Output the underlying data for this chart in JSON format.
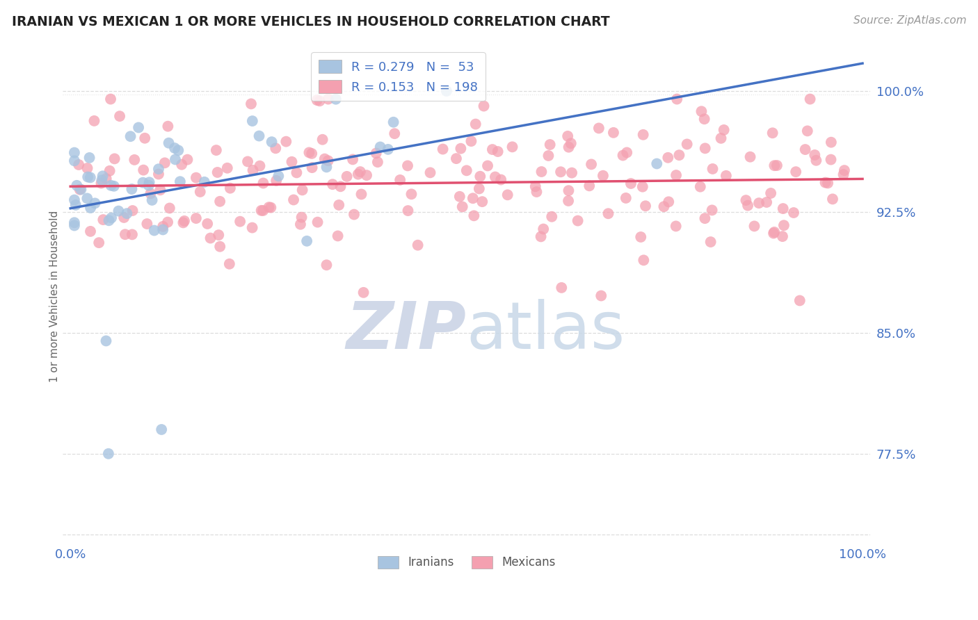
{
  "title": "IRANIAN VS MEXICAN 1 OR MORE VEHICLES IN HOUSEHOLD CORRELATION CHART",
  "source": "Source: ZipAtlas.com",
  "ylabel": "1 or more Vehicles in Household",
  "legend_entries": [
    {
      "label": "Iranians",
      "R": 0.279,
      "N": 53,
      "color": "#a8c4e0",
      "line_color": "#4472c4"
    },
    {
      "label": "Mexicans",
      "R": 0.153,
      "N": 198,
      "color": "#f4a0b0",
      "line_color": "#e05070"
    }
  ],
  "axis_color": "#4472c4",
  "background_color": "#ffffff",
  "watermark_color": "#d0d8e8",
  "title_color": "#222222",
  "source_color": "#999999",
  "ylabel_color": "#666666",
  "grid_color": "#dddddd",
  "iran_seed": 7,
  "mex_seed": 42,
  "ylim_low": 0.72,
  "ylim_high": 1.025,
  "xlim_low": -0.01,
  "xlim_high": 1.01
}
